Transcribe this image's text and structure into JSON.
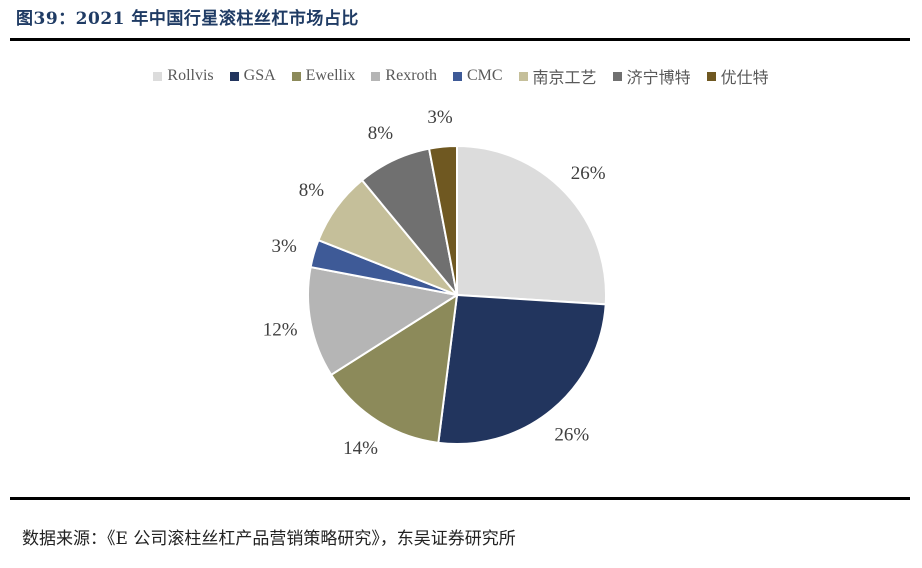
{
  "header": {
    "title": "图39：2021 年中国行星滚柱丝杠市场占比"
  },
  "footer": {
    "source": "数据来源：《E 公司滚柱丝杠产品营销策略研究》，东吴证券研究所"
  },
  "chart_data": {
    "type": "pie",
    "title": "",
    "categories": [
      "Rollvis",
      "GSA",
      "Ewellix",
      "Rexroth",
      "CMC",
      "南京工艺",
      "济宁博特",
      "优仕特"
    ],
    "values": [
      26,
      26,
      14,
      12,
      3,
      8,
      8,
      3
    ],
    "value_labels": [
      "26%",
      "26%",
      "14%",
      "12%",
      "3%",
      "8%",
      "8%",
      "3%"
    ],
    "colors": [
      "#dcdcdc",
      "#22355e",
      "#8c8a5a",
      "#b5b5b5",
      "#3e5a97",
      "#c5bf9a",
      "#707070",
      "#6f5821"
    ],
    "legend_position": "top"
  }
}
